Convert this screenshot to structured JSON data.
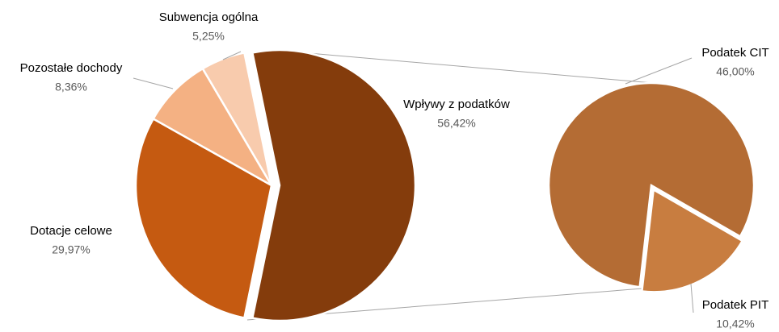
{
  "chart_data": [
    {
      "type": "pie",
      "categories": [
        "Wpływy z podatków",
        "Dotacje celowe",
        "Pozostałe dochody",
        "Subwencja ogólna"
      ],
      "values": [
        56.42,
        29.97,
        8.36,
        5.25
      ],
      "value_labels": [
        "56,42%",
        "29,97%",
        "8,36%",
        "5,25%"
      ],
      "colors": [
        "#843c0c",
        "#c55a11",
        "#f4b183",
        "#f8cbad"
      ]
    },
    {
      "type": "pie",
      "categories": [
        "Podatek CIT",
        "Podatek PIT"
      ],
      "values": [
        46.0,
        10.42
      ],
      "value_labels": [
        "46,00%",
        "10,42%"
      ],
      "colors": [
        "#b46c34",
        "#c87d40"
      ]
    }
  ]
}
